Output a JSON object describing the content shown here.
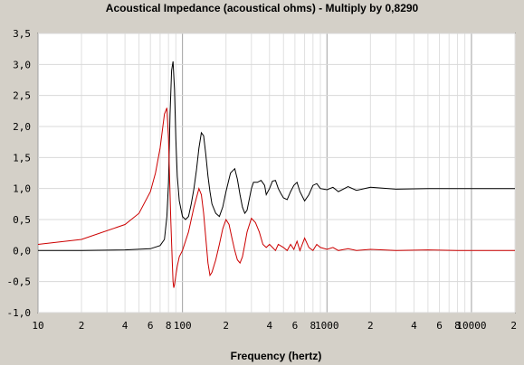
{
  "chart_data": {
    "type": "line",
    "title": "Acoustical Impedance (acoustical ohms) - Multiply by 0,8290",
    "xlabel": "Frequency (hertz)",
    "ylabel": "",
    "x_scale": "log",
    "xlim": [
      10,
      20000
    ],
    "ylim": [
      -1.0,
      3.5
    ],
    "grid": true,
    "y_ticks": [
      "3,5",
      "3,0",
      "2,5",
      "2,0",
      "1,5",
      "1,0",
      "0,5",
      "0,0",
      "-0,5",
      "-1,0"
    ],
    "x_ticks": [
      {
        "value": 10,
        "label": "10"
      },
      {
        "value": 20,
        "label": "2"
      },
      {
        "value": 40,
        "label": "4"
      },
      {
        "value": 60,
        "label": "6"
      },
      {
        "value": 80,
        "label": "8"
      },
      {
        "value": 100,
        "label": "100"
      },
      {
        "value": 200,
        "label": "2"
      },
      {
        "value": 400,
        "label": "4"
      },
      {
        "value": 600,
        "label": "6"
      },
      {
        "value": 800,
        "label": "8"
      },
      {
        "value": 1000,
        "label": "1000"
      },
      {
        "value": 2000,
        "label": "2"
      },
      {
        "value": 4000,
        "label": "4"
      },
      {
        "value": 6000,
        "label": "6"
      },
      {
        "value": 8000,
        "label": "8"
      },
      {
        "value": 10000,
        "label": "10000"
      },
      {
        "value": 20000,
        "label": "2"
      }
    ],
    "series": [
      {
        "color": "#000000",
        "x": [
          10,
          20,
          40,
          60,
          70,
          75,
          78,
          80,
          82,
          84,
          86,
          88,
          90,
          92,
          95,
          100,
          105,
          110,
          115,
          120,
          125,
          130,
          135,
          140,
          145,
          150,
          155,
          160,
          170,
          180,
          190,
          200,
          215,
          230,
          240,
          250,
          260,
          270,
          280,
          300,
          310,
          330,
          350,
          370,
          380,
          400,
          420,
          440,
          460,
          480,
          500,
          530,
          560,
          590,
          620,
          650,
          700,
          750,
          800,
          850,
          900,
          1000,
          1100,
          1200,
          1400,
          1600,
          2000,
          3000,
          5000,
          8000,
          12000,
          20000
        ],
        "y": [
          0.0,
          0.0,
          0.01,
          0.03,
          0.08,
          0.18,
          0.55,
          1.1,
          2.2,
          2.9,
          3.05,
          2.6,
          1.8,
          1.2,
          0.8,
          0.55,
          0.5,
          0.55,
          0.75,
          1.0,
          1.3,
          1.65,
          1.9,
          1.85,
          1.55,
          1.2,
          0.95,
          0.75,
          0.6,
          0.55,
          0.7,
          0.95,
          1.25,
          1.32,
          1.15,
          0.9,
          0.7,
          0.6,
          0.65,
          1.0,
          1.1,
          1.1,
          1.13,
          1.05,
          0.9,
          1.0,
          1.12,
          1.13,
          1.0,
          0.92,
          0.85,
          0.82,
          0.95,
          1.05,
          1.1,
          0.95,
          0.8,
          0.9,
          1.05,
          1.08,
          1.0,
          0.98,
          1.02,
          0.95,
          1.03,
          0.97,
          1.02,
          0.99,
          1.0,
          1.0,
          1.0,
          1.0
        ]
      },
      {
        "color": "#cc0000",
        "x": [
          10,
          20,
          40,
          50,
          60,
          65,
          70,
          75,
          78,
          80,
          83,
          85,
          86,
          87,
          88,
          90,
          92,
          95,
          100,
          110,
          120,
          130,
          135,
          140,
          145,
          150,
          155,
          160,
          170,
          180,
          190,
          200,
          210,
          220,
          230,
          240,
          250,
          260,
          270,
          280,
          300,
          320,
          340,
          360,
          380,
          400,
          420,
          440,
          460,
          500,
          530,
          560,
          590,
          620,
          650,
          700,
          750,
          800,
          850,
          900,
          1000,
          1100,
          1200,
          1400,
          1600,
          2000,
          3000,
          5000,
          8000,
          12000,
          20000
        ],
        "y": [
          0.1,
          0.18,
          0.42,
          0.6,
          0.95,
          1.25,
          1.65,
          2.2,
          2.3,
          1.8,
          0.5,
          -0.2,
          -0.5,
          -0.6,
          -0.55,
          -0.4,
          -0.25,
          -0.1,
          0.0,
          0.3,
          0.7,
          1.0,
          0.9,
          0.6,
          0.2,
          -0.2,
          -0.4,
          -0.35,
          -0.15,
          0.1,
          0.35,
          0.5,
          0.42,
          0.2,
          0.0,
          -0.15,
          -0.2,
          -0.1,
          0.1,
          0.3,
          0.52,
          0.45,
          0.3,
          0.1,
          0.05,
          0.1,
          0.05,
          0.0,
          0.1,
          0.05,
          0.0,
          0.1,
          0.02,
          0.15,
          0.0,
          0.2,
          0.05,
          0.0,
          0.1,
          0.05,
          0.02,
          0.05,
          0.0,
          0.03,
          0.0,
          0.02,
          0.0,
          0.01,
          0.0,
          0.0,
          0.0
        ]
      }
    ]
  }
}
